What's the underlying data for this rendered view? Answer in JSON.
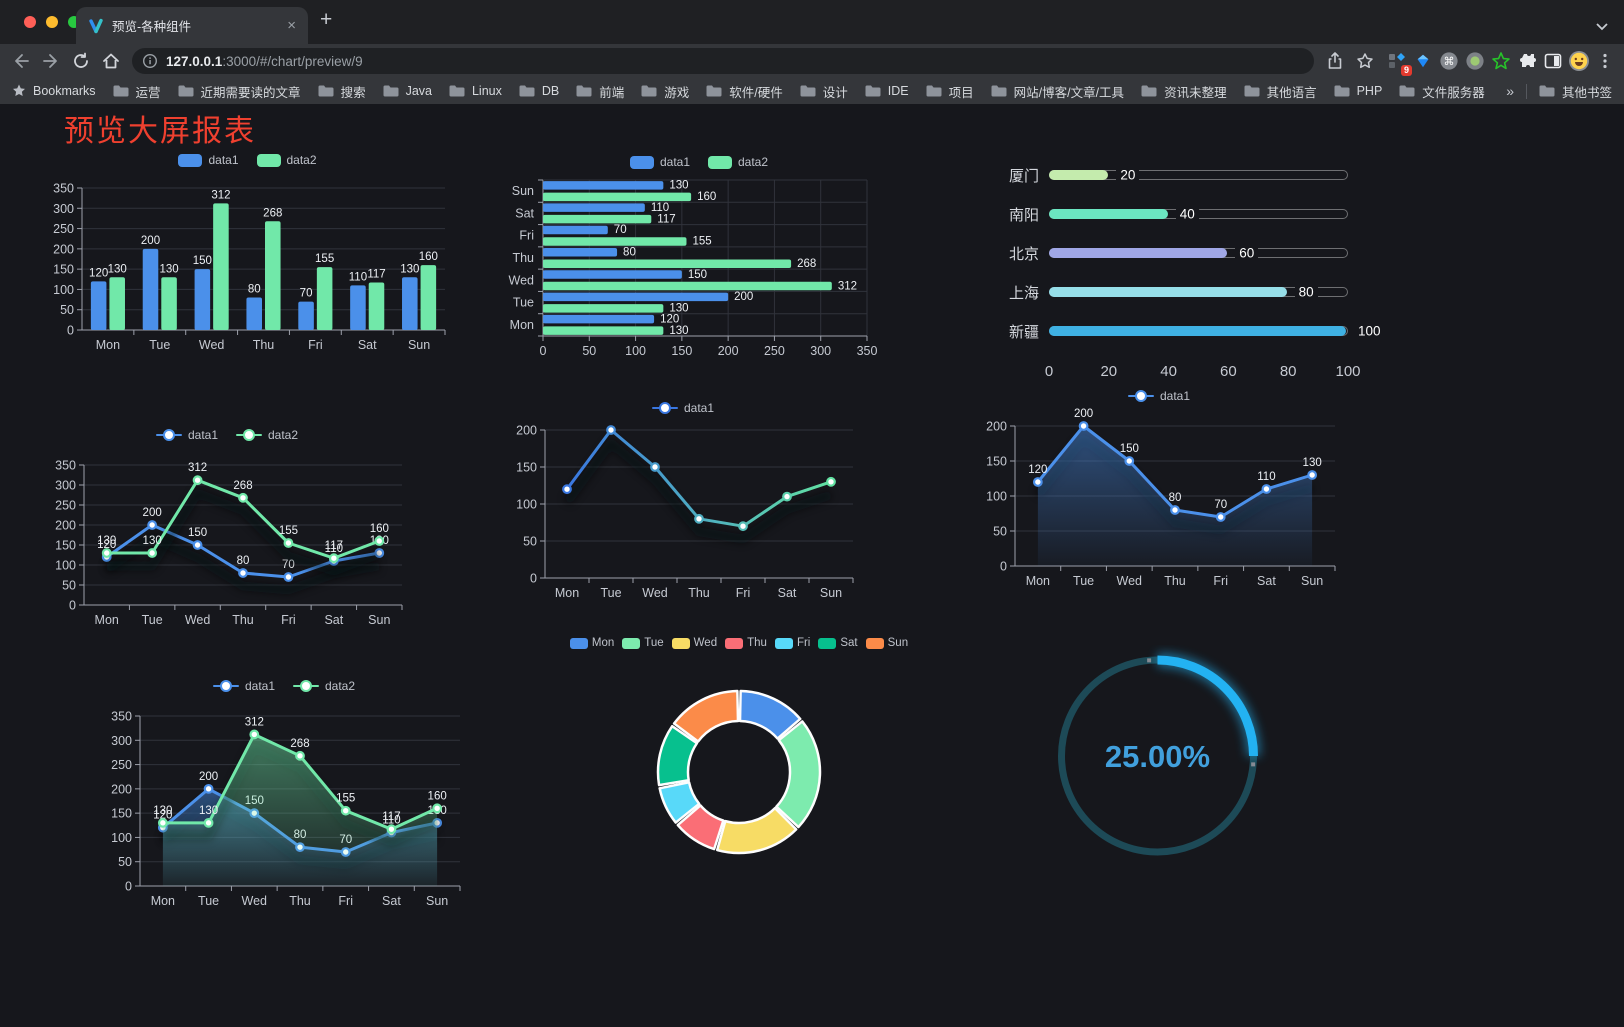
{
  "browser": {
    "tab": {
      "title": "预览-各种组件",
      "close_glyph": "×"
    },
    "new_tab_label": "+",
    "url": {
      "host": "127.0.0.1",
      "rest": ":3000/#/chart/preview/9"
    },
    "bookmarks": {
      "label": "Bookmarks",
      "folders": [
        "运营",
        "近期需要读的文章",
        "搜索",
        "Java",
        "Linux",
        "DB",
        "前端",
        "游戏",
        "软件/硬件",
        "设计",
        "IDE",
        "项目",
        "网站/博客/文章/工具",
        "资讯未整理",
        "其他语言",
        "PHP",
        "文件服务器"
      ],
      "overflow": "»",
      "other": "其他书签"
    },
    "extension_badge": "9"
  },
  "page": {
    "title": "预览大屏报表",
    "title_color": "#ef402f",
    "background": "#16171c"
  },
  "chart_data": [
    {
      "type": "bar",
      "categories": [
        "Mon",
        "Tue",
        "Wed",
        "Thu",
        "Fri",
        "Sat",
        "Sun"
      ],
      "series": [
        {
          "name": "data1",
          "color": "#4b90ea",
          "values": [
            120,
            200,
            150,
            80,
            70,
            110,
            130
          ]
        },
        {
          "name": "data2",
          "color": "#71e8a9",
          "values": [
            130,
            130,
            312,
            268,
            155,
            117,
            160
          ]
        }
      ],
      "ylim": [
        0,
        350
      ],
      "ytick_step": 50,
      "yticks": [
        0,
        50,
        100,
        150,
        200,
        250,
        300,
        350
      ],
      "legend": [
        "data1",
        "data2"
      ],
      "legend_position": "top",
      "grid": true,
      "show_labels": true
    },
    {
      "type": "hbar",
      "categories": [
        "Mon",
        "Tue",
        "Wed",
        "Thu",
        "Fri",
        "Sat",
        "Sun"
      ],
      "series": [
        {
          "name": "data1",
          "color": "#4b90ea",
          "values": [
            120,
            200,
            150,
            80,
            70,
            110,
            130
          ]
        },
        {
          "name": "data2",
          "color": "#71e8a9",
          "values": [
            130,
            130,
            312,
            268,
            155,
            117,
            160
          ]
        }
      ],
      "xlim": [
        0,
        350
      ],
      "xtick_step": 50,
      "xticks": [
        0,
        50,
        100,
        150,
        200,
        250,
        300,
        350
      ],
      "legend": [
        "data1",
        "data2"
      ],
      "legend_position": "top",
      "grid": true,
      "show_labels": true
    },
    {
      "type": "progress",
      "rows": [
        {
          "label": "厦门",
          "value": 20,
          "color": "#c4ebad"
        },
        {
          "label": "南阳",
          "value": 40,
          "color": "#6be6c1"
        },
        {
          "label": "北京",
          "value": 60,
          "color": "#a0a7e6"
        },
        {
          "label": "上海",
          "value": 80,
          "color": "#96dee8"
        },
        {
          "label": "新疆",
          "value": 100,
          "color": "#3fb1e3"
        }
      ],
      "xlim": [
        0,
        100
      ],
      "xticks": [
        0,
        20,
        40,
        60,
        80,
        100
      ]
    },
    {
      "type": "line",
      "categories": [
        "Mon",
        "Tue",
        "Wed",
        "Thu",
        "Fri",
        "Sat",
        "Sun"
      ],
      "series": [
        {
          "name": "data1",
          "color": "#4b90ea",
          "values": [
            120,
            200,
            150,
            80,
            70,
            110,
            130
          ]
        },
        {
          "name": "data2",
          "color": "#71e8a9",
          "values": [
            130,
            130,
            312,
            268,
            155,
            117,
            160
          ]
        }
      ],
      "ylim": [
        0,
        350
      ],
      "ytick_step": 50,
      "yticks": [
        0,
        50,
        100,
        150,
        200,
        250,
        300,
        350
      ],
      "legend": [
        "data1",
        "data2"
      ],
      "legend_position": "top",
      "show_labels": true
    },
    {
      "type": "line",
      "categories": [
        "Mon",
        "Tue",
        "Wed",
        "Thu",
        "Fri",
        "Sat",
        "Sun"
      ],
      "series": [
        {
          "name": "data1",
          "color_start": "#3a77e0",
          "color_end": "#62e2a2",
          "values": [
            120,
            200,
            150,
            80,
            70,
            110,
            130
          ]
        }
      ],
      "ylim": [
        0,
        200
      ],
      "ytick_step": 50,
      "yticks": [
        0,
        50,
        100,
        150,
        200
      ],
      "legend": [
        "data1"
      ],
      "legend_position": "top",
      "show_labels": false
    },
    {
      "type": "area",
      "categories": [
        "Mon",
        "Tue",
        "Wed",
        "Thu",
        "Fri",
        "Sat",
        "Sun"
      ],
      "series": [
        {
          "name": "data1",
          "color": "#4b90ea",
          "values": [
            120,
            200,
            150,
            80,
            70,
            110,
            130
          ]
        }
      ],
      "ylim": [
        0,
        200
      ],
      "ytick_step": 50,
      "yticks": [
        0,
        50,
        100,
        150,
        200
      ],
      "legend": [
        "data1"
      ],
      "legend_position": "top",
      "show_labels": true
    },
    {
      "type": "area",
      "categories": [
        "Mon",
        "Tue",
        "Wed",
        "Thu",
        "Fri",
        "Sat",
        "Sun"
      ],
      "series": [
        {
          "name": "data1",
          "color": "#4b90ea",
          "values": [
            120,
            200,
            150,
            80,
            70,
            110,
            130
          ]
        },
        {
          "name": "data2",
          "color": "#71e8a9",
          "values": [
            130,
            130,
            312,
            268,
            155,
            117,
            160
          ]
        }
      ],
      "ylim": [
        0,
        350
      ],
      "ytick_step": 50,
      "yticks": [
        0,
        50,
        100,
        150,
        200,
        250,
        300,
        350
      ],
      "legend": [
        "data1",
        "data2"
      ],
      "legend_position": "top",
      "show_labels": true
    },
    {
      "type": "donut",
      "categories": [
        "Mon",
        "Tue",
        "Wed",
        "Thu",
        "Fri",
        "Sat",
        "Sun"
      ],
      "values": [
        120,
        200,
        150,
        80,
        70,
        110,
        130
      ],
      "colors": [
        "#4b90ea",
        "#7debae",
        "#f7dc65",
        "#fa6e76",
        "#58d9f9",
        "#07c08e",
        "#fb8b49"
      ],
      "legend_position": "top"
    },
    {
      "type": "gauge",
      "value": 25,
      "max": 100,
      "label": "25.00%",
      "color": "#23b2f2",
      "track_color": "#1d4a57",
      "text_color": "#41a0dd"
    }
  ]
}
